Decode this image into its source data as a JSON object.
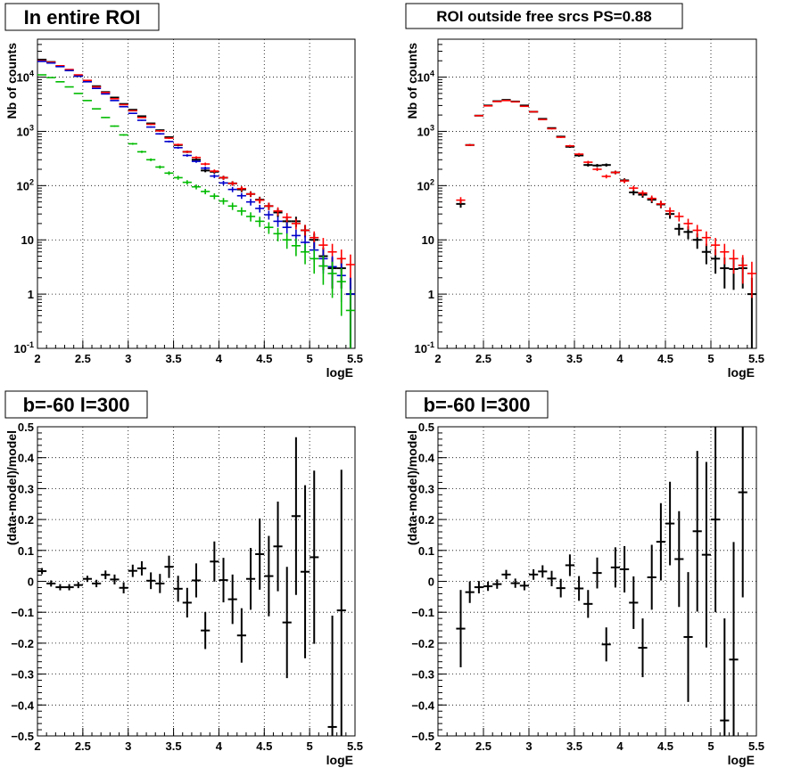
{
  "chart_data": [
    {
      "type": "scatter",
      "title": "In entire ROI",
      "xlabel": "logE",
      "ylabel": "Nb of counts",
      "xlim": [
        2,
        5.5
      ],
      "ylim": [
        0.1,
        50000
      ],
      "yscale": "log",
      "grid": true,
      "x_ticks": [
        "2",
        "2.5",
        "3",
        "3.5",
        "4",
        "4.5",
        "5",
        "5.5"
      ],
      "y_ticks": [
        "10^-1",
        "1",
        "10",
        "10^2",
        "10^3",
        "10^4"
      ],
      "colors": {
        "data": "#000000",
        "model": "#ff0000",
        "blue_series": "#0000cc",
        "green_series": "#00bb00"
      },
      "series": [
        {
          "color": "#000000",
          "x": [
            2.05,
            2.15,
            2.25,
            2.35,
            2.45,
            2.55,
            2.65,
            2.75,
            2.85,
            2.95,
            3.05,
            3.15,
            3.25,
            3.35,
            3.45,
            3.55,
            3.65,
            3.75,
            3.85,
            3.95,
            4.05,
            4.15,
            4.25,
            4.35,
            4.45,
            4.55,
            4.65,
            4.75,
            4.85,
            4.95,
            5.05,
            5.15,
            5.25,
            5.35,
            5.45
          ],
          "y": [
            21000,
            19000,
            16000,
            13500,
            10500,
            8600,
            6800,
            5300,
            4200,
            3200,
            2500,
            1900,
            1400,
            1050,
            780,
            560,
            420,
            300,
            190,
            180,
            140,
            110,
            85,
            70,
            55,
            42,
            32,
            22,
            22,
            15,
            10,
            5,
            3,
            3,
            1
          ]
        },
        {
          "color": "#ff0000",
          "x": [
            2.05,
            2.15,
            2.25,
            2.35,
            2.45,
            2.55,
            2.65,
            2.75,
            2.85,
            2.95,
            3.05,
            3.15,
            3.25,
            3.35,
            3.45,
            3.55,
            3.65,
            3.75,
            3.85,
            3.95,
            4.05,
            4.15,
            4.25,
            4.35,
            4.45,
            4.55,
            4.65,
            4.75,
            4.85,
            4.95,
            5.05,
            5.15,
            5.25,
            5.35,
            5.45
          ],
          "y": [
            20000,
            18800,
            16200,
            13800,
            11000,
            8700,
            6600,
            5200,
            4000,
            3100,
            2400,
            1800,
            1350,
            1020,
            750,
            570,
            420,
            330,
            250,
            185,
            140,
            110,
            88,
            70,
            54,
            42,
            34,
            26,
            20,
            15,
            11,
            8,
            6,
            4.5,
            3.5
          ]
        },
        {
          "color": "#0000cc",
          "x": [
            2.05,
            2.15,
            2.25,
            2.35,
            2.45,
            2.55,
            2.65,
            2.75,
            2.85,
            2.95,
            3.05,
            3.15,
            3.25,
            3.35,
            3.45,
            3.55,
            3.65,
            3.75,
            3.85,
            3.95,
            4.05,
            4.15,
            4.25,
            4.35,
            4.45,
            4.55,
            4.65,
            4.75,
            4.85,
            4.95,
            5.05,
            5.15,
            5.25,
            5.35,
            5.45
          ],
          "y": [
            19500,
            18200,
            15600,
            13200,
            10400,
            8200,
            6200,
            4900,
            3700,
            2850,
            2150,
            1600,
            1200,
            900,
            650,
            500,
            360,
            280,
            210,
            150,
            112,
            85,
            65,
            50,
            38,
            29,
            22,
            17,
            12,
            9,
            6.5,
            4.5,
            3.2,
            2.2,
            1
          ]
        },
        {
          "color": "#00bb00",
          "x": [
            2.05,
            2.15,
            2.25,
            2.35,
            2.45,
            2.55,
            2.65,
            2.75,
            2.85,
            2.95,
            3.05,
            3.15,
            3.25,
            3.35,
            3.45,
            3.55,
            3.65,
            3.75,
            3.85,
            3.95,
            4.05,
            4.15,
            4.25,
            4.35,
            4.45,
            4.55,
            4.65,
            4.75,
            4.85,
            4.95,
            5.05,
            5.15,
            5.25,
            5.35,
            5.45
          ],
          "y": [
            11000,
            9800,
            8200,
            6600,
            5000,
            3700,
            2600,
            1800,
            1250,
            860,
            590,
            420,
            300,
            220,
            170,
            140,
            115,
            95,
            78,
            64,
            52,
            42,
            34,
            27,
            22,
            17,
            13,
            10,
            7.8,
            6,
            4.5,
            3.3,
            2.4,
            1.7,
            0.5
          ]
        }
      ]
    },
    {
      "type": "scatter",
      "title": "ROI outside free srcs PS=0.88",
      "xlabel": "logE",
      "ylabel": "Nb of counts",
      "xlim": [
        2,
        5.5
      ],
      "ylim": [
        0.1,
        50000
      ],
      "yscale": "log",
      "grid": true,
      "x_ticks": [
        "2",
        "2.5",
        "3",
        "3.5",
        "4",
        "4.5",
        "5",
        "5.5"
      ],
      "y_ticks": [
        "10^-1",
        "1",
        "10",
        "10^2",
        "10^3",
        "10^4"
      ],
      "colors": {
        "data": "#000000",
        "model": "#ff0000"
      },
      "series": [
        {
          "color": "#000000",
          "x": [
            2.25,
            2.35,
            2.45,
            2.55,
            2.65,
            2.75,
            2.85,
            2.95,
            3.05,
            3.15,
            3.25,
            3.35,
            3.45,
            3.55,
            3.65,
            3.75,
            3.85,
            3.95,
            4.05,
            4.15,
            4.25,
            4.35,
            4.45,
            4.55,
            4.65,
            4.75,
            4.85,
            4.95,
            5.05,
            5.15,
            5.25,
            5.35,
            5.45
          ],
          "y": [
            46,
            560,
            1950,
            3000,
            3600,
            3800,
            3550,
            3000,
            2300,
            1700,
            1150,
            800,
            520,
            360,
            240,
            235,
            240,
            175,
            125,
            75,
            68,
            55,
            45,
            30,
            16,
            14,
            10,
            6,
            4.5,
            3,
            2.9,
            3,
            1
          ]
        },
        {
          "color": "#ff0000",
          "x": [
            2.25,
            2.35,
            2.45,
            2.55,
            2.65,
            2.75,
            2.85,
            2.95,
            3.05,
            3.15,
            3.25,
            3.35,
            3.45,
            3.55,
            3.65,
            3.75,
            3.85,
            3.95,
            4.05,
            4.15,
            4.25,
            4.35,
            4.45,
            4.55,
            4.65,
            4.75,
            4.85,
            4.95,
            5.05,
            5.15,
            5.25,
            5.35,
            5.45
          ],
          "y": [
            54,
            560,
            1950,
            2950,
            3550,
            3700,
            3500,
            2900,
            2300,
            1650,
            1120,
            780,
            540,
            380,
            270,
            200,
            148,
            175,
            122,
            90,
            73,
            58,
            46,
            34,
            27,
            20,
            15,
            11,
            8,
            6,
            4.5,
            3.4,
            2.4
          ]
        }
      ]
    },
    {
      "type": "scatter",
      "title": "b=-60 l=300",
      "xlabel": "logE",
      "ylabel": "(data-model)/model",
      "xlim": [
        2,
        5.5
      ],
      "ylim": [
        -0.5,
        0.5
      ],
      "grid": true,
      "x_ticks": [
        "2",
        "2.5",
        "3",
        "3.5",
        "4",
        "4.5",
        "5",
        "5.5"
      ],
      "y_ticks": [
        "-0.5",
        "-0.4",
        "-0.3",
        "-0.2",
        "-0.1",
        "0",
        "0.1",
        "0.2",
        "0.3",
        "0.4",
        "0.5"
      ],
      "colors": {
        "data": "#000000"
      },
      "series": [
        {
          "color": "#000000",
          "x": [
            2.05,
            2.15,
            2.25,
            2.35,
            2.45,
            2.55,
            2.65,
            2.75,
            2.85,
            2.95,
            3.05,
            3.15,
            3.25,
            3.35,
            3.45,
            3.55,
            3.65,
            3.75,
            3.85,
            3.95,
            4.05,
            4.15,
            4.25,
            4.35,
            4.45,
            4.55,
            4.65,
            4.75,
            4.85,
            4.95,
            5.05,
            5.25,
            5.35
          ],
          "y": [
            0.033,
            -0.007,
            -0.019,
            -0.019,
            -0.012,
            0.008,
            -0.007,
            0.021,
            0.006,
            -0.021,
            0.034,
            0.042,
            0.002,
            -0.007,
            0.047,
            -0.024,
            -0.069,
            0.003,
            -0.159,
            0.064,
            0.004,
            -0.058,
            -0.175,
            0.008,
            0.088,
            0.017,
            0.113,
            -0.133,
            0.211,
            0.031,
            0.078,
            -0.471,
            -0.094
          ],
          "yerr": [
            0.01,
            0.01,
            0.01,
            0.01,
            0.01,
            0.01,
            0.012,
            0.014,
            0.016,
            0.018,
            0.02,
            0.023,
            0.027,
            0.031,
            0.036,
            0.042,
            0.048,
            0.055,
            0.06,
            0.065,
            0.072,
            0.08,
            0.088,
            0.1,
            0.115,
            0.13,
            0.145,
            0.18,
            0.255,
            0.28,
            0.28,
            0.36,
            0.455
          ]
        }
      ]
    },
    {
      "type": "scatter",
      "title": "b=-60 l=300",
      "xlabel": "logE",
      "ylabel": "(data-model)/model",
      "xlim": [
        2,
        5.5
      ],
      "ylim": [
        -0.5,
        0.5
      ],
      "grid": true,
      "x_ticks": [
        "2",
        "2.5",
        "3",
        "3.5",
        "4",
        "4.5",
        "5",
        "5.5"
      ],
      "y_ticks": [
        "-0.5",
        "-0.4",
        "-0.3",
        "-0.2",
        "-0.1",
        "0",
        "0.1",
        "0.2",
        "0.3",
        "0.4",
        "0.5"
      ],
      "colors": {
        "data": "#000000"
      },
      "series": [
        {
          "color": "#000000",
          "x": [
            2.25,
            2.35,
            2.45,
            2.55,
            2.65,
            2.75,
            2.85,
            2.95,
            3.05,
            3.15,
            3.25,
            3.35,
            3.45,
            3.55,
            3.65,
            3.75,
            3.85,
            3.95,
            4.05,
            4.15,
            4.25,
            4.35,
            4.45,
            4.55,
            4.65,
            4.75,
            4.85,
            4.95,
            5.05,
            5.15,
            5.25,
            5.35
          ],
          "y": [
            -0.153,
            -0.035,
            -0.019,
            -0.016,
            -0.009,
            0.022,
            -0.006,
            -0.014,
            0.022,
            0.032,
            0.009,
            -0.022,
            0.052,
            -0.023,
            -0.073,
            0.027,
            -0.204,
            0.045,
            0.039,
            -0.069,
            -0.215,
            0.013,
            0.128,
            0.187,
            0.072,
            -0.18,
            0.162,
            0.086,
            0.2,
            -0.45,
            -0.253,
            0.288
          ],
          "yerr": [
            0.125,
            0.035,
            0.02,
            0.015,
            0.015,
            0.015,
            0.015,
            0.015,
            0.017,
            0.02,
            0.025,
            0.03,
            0.035,
            0.04,
            0.045,
            0.05,
            0.055,
            0.065,
            0.075,
            0.085,
            0.095,
            0.105,
            0.125,
            0.135,
            0.155,
            0.21,
            0.26,
            0.3,
            0.3,
            0.33,
            0.38,
            0.34
          ]
        }
      ]
    }
  ]
}
